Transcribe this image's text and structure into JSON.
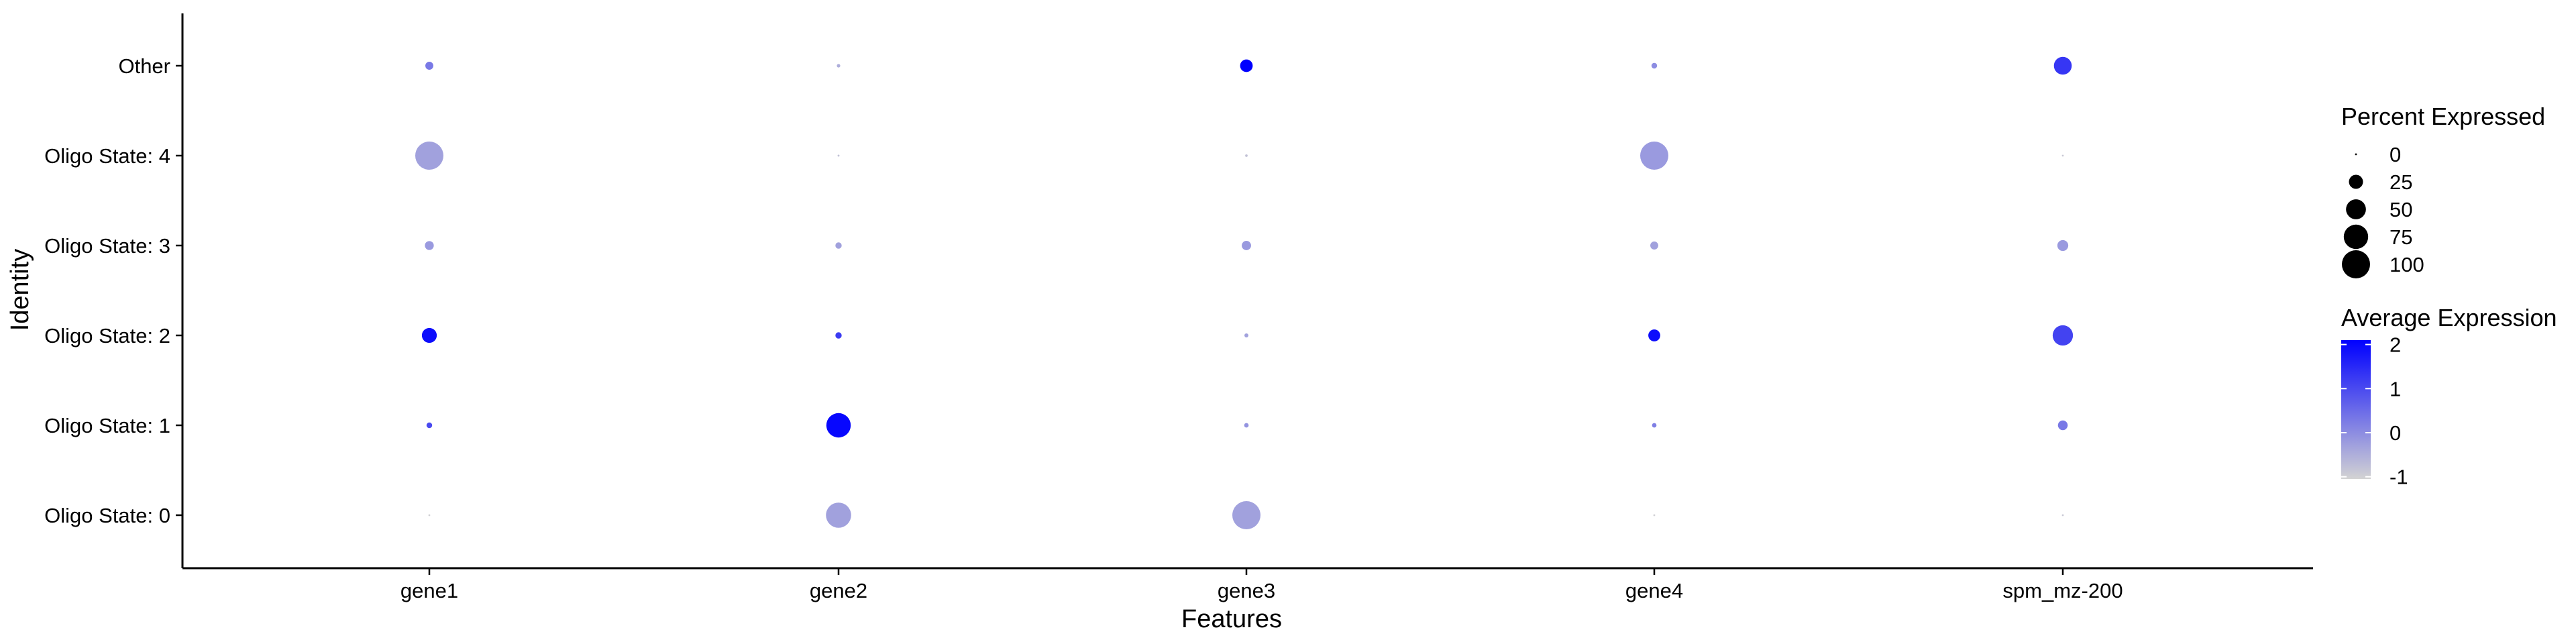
{
  "chart_data": {
    "type": "dot",
    "title": "",
    "xlabel": "Features",
    "ylabel": "Identity",
    "categories_x": [
      "gene1",
      "gene2",
      "gene3",
      "gene4",
      "spm_mz-200"
    ],
    "categories_y": [
      "Oligo State: 0",
      "Oligo State: 1",
      "Oligo State: 2",
      "Oligo State: 3",
      "Oligo State: 4",
      "Other"
    ],
    "points": [
      {
        "feature": "gene1",
        "identity": "Oligo State: 0",
        "pct": 0.3,
        "avg": -1.0
      },
      {
        "feature": "gene1",
        "identity": "Oligo State: 1",
        "pct": 4,
        "avg": 1.0
      },
      {
        "feature": "gene1",
        "identity": "Oligo State: 2",
        "pct": 28,
        "avg": 1.9
      },
      {
        "feature": "gene1",
        "identity": "Oligo State: 3",
        "pct": 10,
        "avg": -0.2
      },
      {
        "feature": "gene1",
        "identity": "Oligo State: 4",
        "pct": 100,
        "avg": -0.3
      },
      {
        "feature": "gene1",
        "identity": "Other",
        "pct": 8,
        "avg": 0.3
      },
      {
        "feature": "gene2",
        "identity": "Oligo State: 0",
        "pct": 80,
        "avg": -0.3
      },
      {
        "feature": "gene2",
        "identity": "Oligo State: 1",
        "pct": 75,
        "avg": 2.0
      },
      {
        "feature": "gene2",
        "identity": "Oligo State: 2",
        "pct": 5,
        "avg": 1.2
      },
      {
        "feature": "gene2",
        "identity": "Oligo State: 3",
        "pct": 5,
        "avg": -0.3
      },
      {
        "feature": "gene2",
        "identity": "Oligo State: 4",
        "pct": 0.5,
        "avg": -0.8
      },
      {
        "feature": "gene2",
        "identity": "Other",
        "pct": 1.5,
        "avg": -0.5
      },
      {
        "feature": "gene3",
        "identity": "Oligo State: 0",
        "pct": 100,
        "avg": -0.3
      },
      {
        "feature": "gene3",
        "identity": "Oligo State: 1",
        "pct": 2.5,
        "avg": -0.1
      },
      {
        "feature": "gene3",
        "identity": "Oligo State: 2",
        "pct": 2,
        "avg": -0.3
      },
      {
        "feature": "gene3",
        "identity": "Oligo State: 3",
        "pct": 11,
        "avg": -0.2
      },
      {
        "feature": "gene3",
        "identity": "Oligo State: 4",
        "pct": 0.8,
        "avg": -0.8
      },
      {
        "feature": "gene3",
        "identity": "Other",
        "pct": 20,
        "avg": 2.1
      },
      {
        "feature": "gene4",
        "identity": "Oligo State: 0",
        "pct": 0.3,
        "avg": -1.0
      },
      {
        "feature": "gene4",
        "identity": "Oligo State: 1",
        "pct": 2.5,
        "avg": 0.2
      },
      {
        "feature": "gene4",
        "identity": "Oligo State: 2",
        "pct": 18,
        "avg": 1.9
      },
      {
        "feature": "gene4",
        "identity": "Oligo State: 3",
        "pct": 8,
        "avg": -0.3
      },
      {
        "feature": "gene4",
        "identity": "Oligo State: 4",
        "pct": 100,
        "avg": -0.2
      },
      {
        "feature": "gene4",
        "identity": "Other",
        "pct": 4,
        "avg": 0.0
      },
      {
        "feature": "spm_mz-200",
        "identity": "Oligo State: 0",
        "pct": 0.3,
        "avg": -0.9
      },
      {
        "feature": "spm_mz-200",
        "identity": "Oligo State: 1",
        "pct": 12,
        "avg": 0.3
      },
      {
        "feature": "spm_mz-200",
        "identity": "Oligo State: 2",
        "pct": 52,
        "avg": 1.1
      },
      {
        "feature": "spm_mz-200",
        "identity": "Oligo State: 3",
        "pct": 15,
        "avg": -0.2
      },
      {
        "feature": "spm_mz-200",
        "identity": "Oligo State: 4",
        "pct": 0.3,
        "avg": -0.9
      },
      {
        "feature": "spm_mz-200",
        "identity": "Other",
        "pct": 40,
        "avg": 1.3
      }
    ],
    "size_legend": {
      "title": "Percent Expressed",
      "breaks": [
        0,
        25,
        50,
        75,
        100
      ]
    },
    "color_legend": {
      "title": "Average Expression",
      "breaks": [
        2,
        1,
        0,
        -1
      ],
      "range": [
        -1.05,
        2.1
      ],
      "low_color": "#d3d3d3",
      "high_color": "#0000ff"
    },
    "grid": false,
    "legend_position": "right"
  }
}
